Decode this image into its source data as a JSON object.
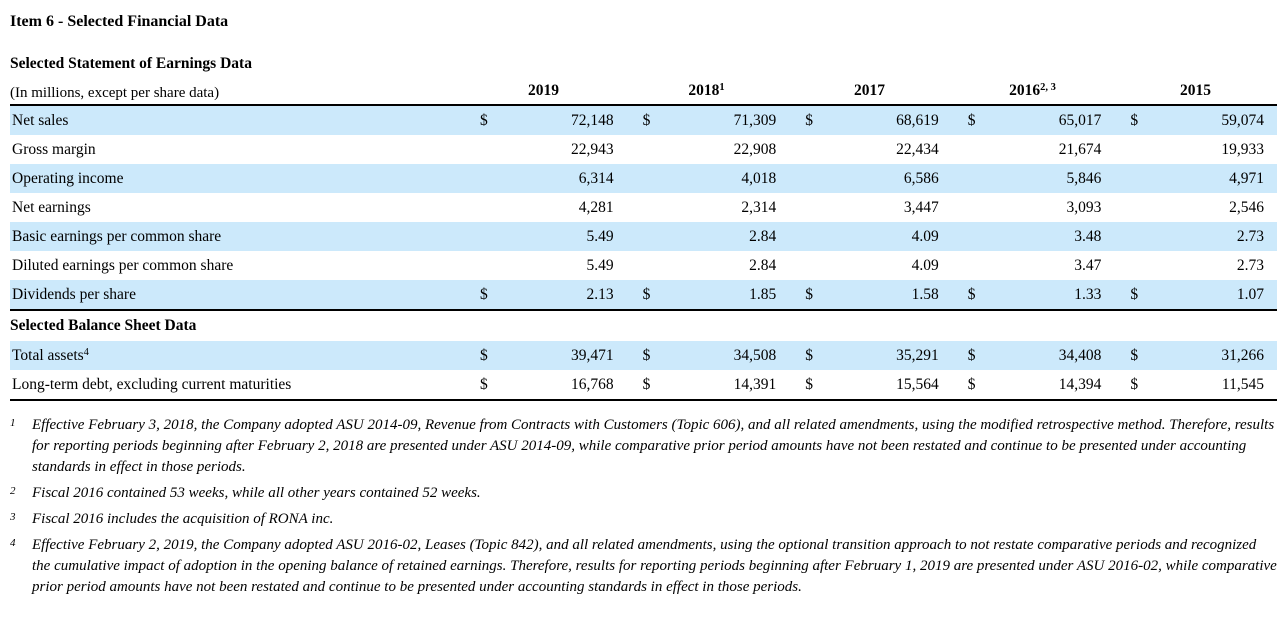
{
  "page": {
    "title": "Item 6 - Selected Financial Data"
  },
  "dollar_sign": "$",
  "colors": {
    "row_shaded": "#cce9fb",
    "rule": "#000000",
    "text": "#000000",
    "background": "#ffffff"
  },
  "earnings_table": {
    "section_title": "Selected Statement of Earnings Data",
    "units_note": "(In millions, except per share data)",
    "years": [
      {
        "label": "2019",
        "sup": ""
      },
      {
        "label": "2018",
        "sup": "1"
      },
      {
        "label": "2017",
        "sup": ""
      },
      {
        "label": "2016",
        "sup": "2, 3"
      },
      {
        "label": "2015",
        "sup": ""
      }
    ],
    "rows": [
      {
        "label": "Net sales",
        "sup": "",
        "dollar": true,
        "shaded": true,
        "values": [
          "72,148",
          "71,309",
          "68,619",
          "65,017",
          "59,074"
        ]
      },
      {
        "label": "Gross margin",
        "sup": "",
        "dollar": false,
        "shaded": false,
        "values": [
          "22,943",
          "22,908",
          "22,434",
          "21,674",
          "19,933"
        ]
      },
      {
        "label": "Operating income",
        "sup": "",
        "dollar": false,
        "shaded": true,
        "values": [
          "6,314",
          "4,018",
          "6,586",
          "5,846",
          "4,971"
        ]
      },
      {
        "label": "Net earnings",
        "sup": "",
        "dollar": false,
        "shaded": false,
        "values": [
          "4,281",
          "2,314",
          "3,447",
          "3,093",
          "2,546"
        ]
      },
      {
        "label": "Basic earnings per common share",
        "sup": "",
        "dollar": false,
        "shaded": true,
        "values": [
          "5.49",
          "2.84",
          "4.09",
          "3.48",
          "2.73"
        ]
      },
      {
        "label": "Diluted earnings per common share",
        "sup": "",
        "dollar": false,
        "shaded": false,
        "values": [
          "5.49",
          "2.84",
          "4.09",
          "3.47",
          "2.73"
        ]
      },
      {
        "label": "Dividends per share",
        "sup": "",
        "dollar": true,
        "shaded": true,
        "values": [
          "2.13",
          "1.85",
          "1.58",
          "1.33",
          "1.07"
        ]
      }
    ]
  },
  "balance_sheet_table": {
    "section_title": "Selected Balance Sheet Data",
    "rows": [
      {
        "label": "Total assets",
        "sup": "4",
        "dollar": true,
        "shaded": true,
        "values": [
          "39,471",
          "34,508",
          "35,291",
          "34,408",
          "31,266"
        ]
      },
      {
        "label": "Long-term debt, excluding current maturities",
        "sup": "",
        "dollar": true,
        "shaded": false,
        "values": [
          "16,768",
          "14,391",
          "15,564",
          "14,394",
          "11,545"
        ]
      }
    ]
  },
  "footnotes": [
    {
      "number": "1",
      "text": "Effective February 3, 2018, the Company adopted ASU 2014-09, Revenue from Contracts with Customers (Topic 606), and all related amendments, using the modified retrospective method. Therefore, results for reporting periods beginning after February 2, 2018 are presented under ASU 2014-09, while comparative prior period amounts have not been restated and continue to be presented under accounting standards in effect in those periods."
    },
    {
      "number": "2",
      "text": "Fiscal 2016 contained 53 weeks, while all other years contained 52 weeks."
    },
    {
      "number": "3",
      "text": "Fiscal 2016 includes the acquisition of RONA inc."
    },
    {
      "number": "4",
      "text": "Effective February 2, 2019, the Company adopted ASU 2016-02, Leases (Topic 842), and all related amendments, using the optional transition approach to not restate comparative periods and recognized the cumulative impact of adoption in the opening balance of retained earnings. Therefore, results for reporting periods beginning after February 1, 2019 are presented under ASU 2016-02, while comparative prior period amounts have not been restated and continue to be presented under accounting standards in effect in those periods."
    }
  ]
}
